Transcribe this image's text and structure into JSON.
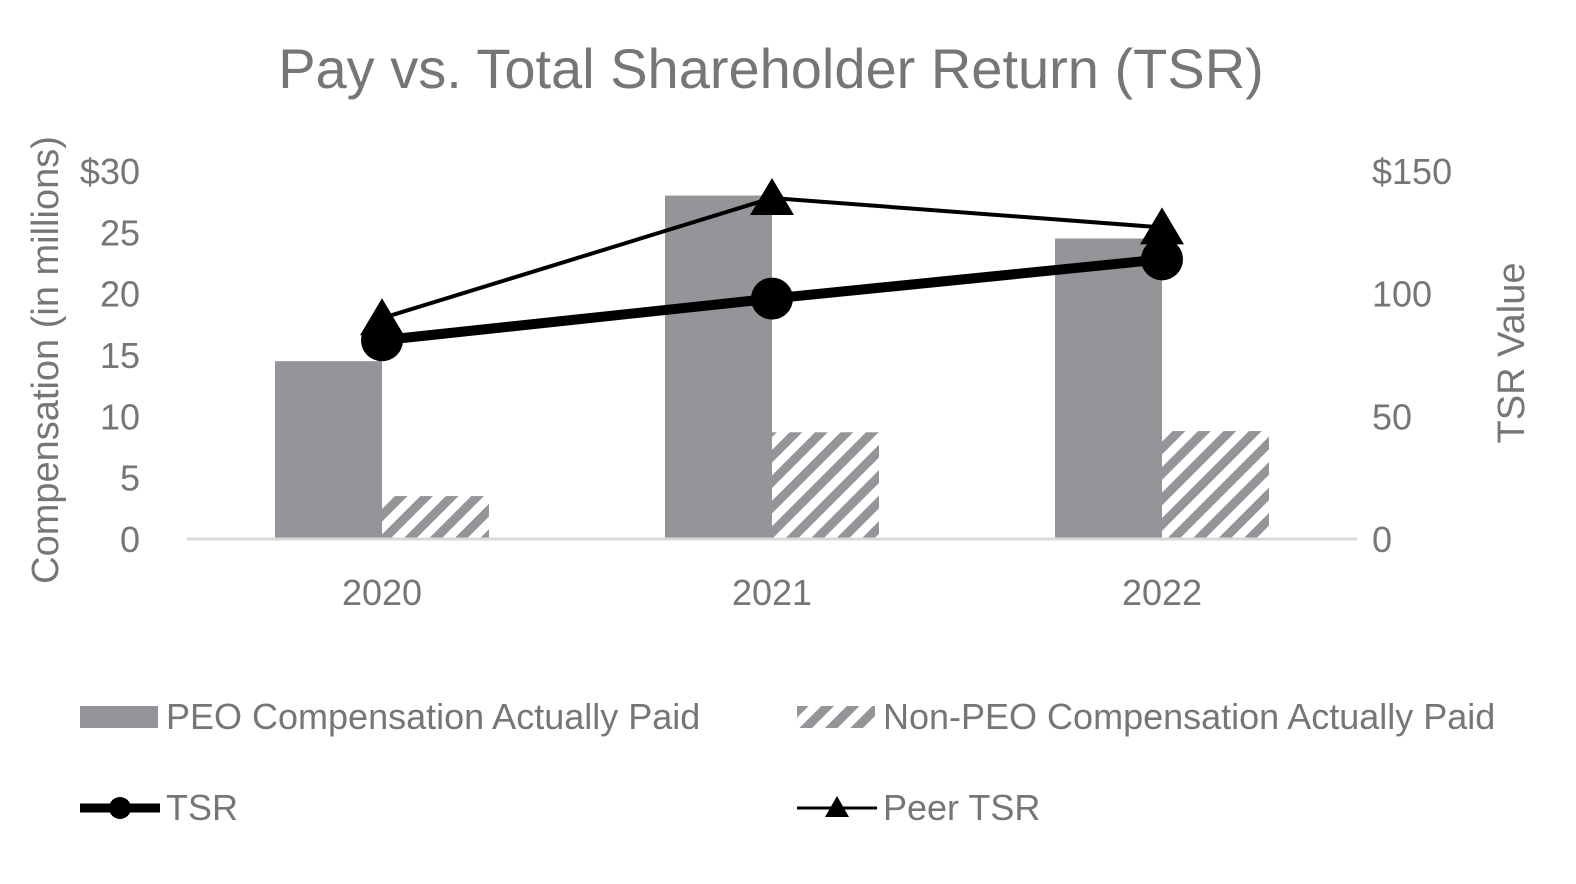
{
  "chart_data": {
    "type": "bar",
    "title": "Pay vs. Total Shareholder Return (TSR)",
    "categories": [
      "2020",
      "2021",
      "2022"
    ],
    "ylabel": "Compensation (in millions)",
    "y2label": "TSR Value",
    "ylim": [
      0,
      30
    ],
    "y2lim": [
      0,
      150
    ],
    "yticks": [
      "0",
      "5",
      "10",
      "15",
      "20",
      "25",
      "$30"
    ],
    "y2ticks": [
      "0",
      "50",
      "100",
      "$150"
    ],
    "y2tick_values": [
      0,
      50,
      100,
      150
    ],
    "series": [
      {
        "name": "PEO Compensation Actually Paid",
        "kind": "bar",
        "axis": "left",
        "color": "#939598",
        "values": [
          14.5,
          28.0,
          24.5
        ]
      },
      {
        "name": "Non-PEO Compensation Actually Paid",
        "kind": "bar-hatched",
        "axis": "left",
        "color": "#939598",
        "values": [
          3.5,
          8.7,
          8.8
        ]
      },
      {
        "name": "TSR",
        "kind": "line",
        "marker": "circle",
        "axis": "right",
        "color": "#000000",
        "values": [
          81,
          98,
          114
        ]
      },
      {
        "name": "Peer TSR",
        "kind": "line",
        "marker": "triangle",
        "axis": "right",
        "color": "#000000",
        "values": [
          90,
          139,
          127
        ]
      }
    ],
    "legend_position": "bottom",
    "grid": false
  }
}
